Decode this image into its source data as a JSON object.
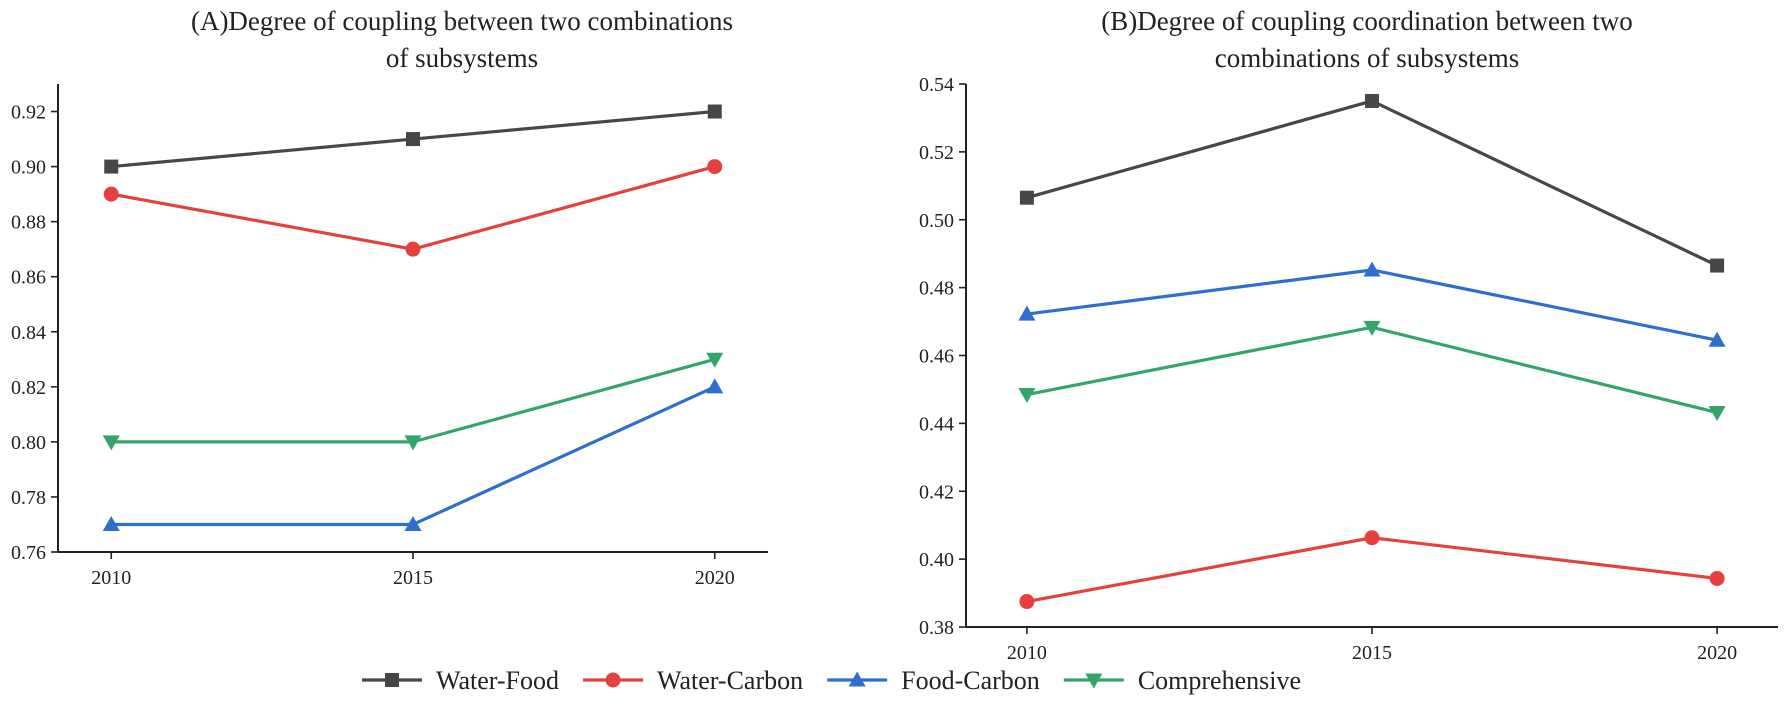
{
  "colors": {
    "Water-Food": "#474747",
    "Water-Carbon": "#e4403e",
    "Food-Carbon": "#2e6fce",
    "Comprehensive": "#34a56a",
    "axis": "#222222"
  },
  "legend": {
    "entries": [
      {
        "name": "Water-Food",
        "marker": "square"
      },
      {
        "name": "Water-Carbon",
        "marker": "circle"
      },
      {
        "name": "Food-Carbon",
        "marker": "triangle-up"
      },
      {
        "name": "Comprehensive",
        "marker": "triangle-down"
      }
    ]
  },
  "chart_data": [
    {
      "type": "line",
      "title_lines": [
        "(A)Degree of coupling between two combinations",
        "of subsystems"
      ],
      "categories": [
        "2010",
        "2015",
        "2020"
      ],
      "xlabel": "",
      "ylabel": "",
      "ylim": [
        0.76,
        0.93
      ],
      "yticks": [
        0.76,
        0.78,
        0.8,
        0.82,
        0.84,
        0.86,
        0.88,
        0.9,
        0.92
      ],
      "ytick_labels": [
        "0.76",
        "0.78",
        "0.80",
        "0.82",
        "0.84",
        "0.86",
        "0.88",
        "0.90",
        "0.92"
      ],
      "series": [
        {
          "name": "Water-Food",
          "marker": "square",
          "values": [
            0.9,
            0.91,
            0.92
          ]
        },
        {
          "name": "Water-Carbon",
          "marker": "circle",
          "values": [
            0.89,
            0.87,
            0.9
          ]
        },
        {
          "name": "Food-Carbon",
          "marker": "triangle-up",
          "values": [
            0.77,
            0.77,
            0.82
          ]
        },
        {
          "name": "Comprehensive",
          "marker": "triangle-down",
          "values": [
            0.8,
            0.8,
            0.83
          ]
        }
      ]
    },
    {
      "type": "line",
      "title_lines": [
        "(B)Degree of coupling coordination between two",
        "combinations of subsystems"
      ],
      "categories": [
        "2010",
        "2015",
        "2020"
      ],
      "xlabel": "",
      "ylabel": "",
      "ylim": [
        0.38,
        0.54
      ],
      "yticks": [
        0.38,
        0.4,
        0.42,
        0.44,
        0.46,
        0.48,
        0.5,
        0.52,
        0.54
      ],
      "ytick_labels": [
        "0.38",
        "0.40",
        "0.42",
        "0.44",
        "0.46",
        "0.48",
        "0.50",
        "0.52",
        "0.54"
      ],
      "series": [
        {
          "name": "Water-Food",
          "marker": "square",
          "values": [
            0.5065,
            0.535,
            0.4865
          ]
        },
        {
          "name": "Water-Carbon",
          "marker": "circle",
          "values": [
            0.3875,
            0.4063,
            0.3943
          ]
        },
        {
          "name": "Food-Carbon",
          "marker": "triangle-up",
          "values": [
            0.4722,
            0.4852,
            0.4645
          ]
        },
        {
          "name": "Comprehensive",
          "marker": "triangle-down",
          "values": [
            0.4485,
            0.4683,
            0.4432
          ]
        }
      ]
    }
  ]
}
